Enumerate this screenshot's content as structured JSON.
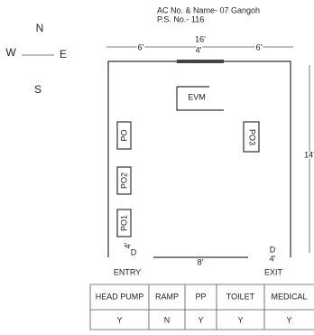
{
  "compass": {
    "north": "N",
    "west": "W",
    "east": "E",
    "south": "S"
  },
  "header": {
    "title": "AC No. & Name- 07 Gangoh",
    "subtitle": "P.S. No.- 116"
  },
  "dimensions": {
    "width": "16'",
    "top_left": "6'",
    "top_door": "4'",
    "top_right": "6'",
    "depth": "14'",
    "bottom": "8'",
    "entry_width": "4'",
    "exit_width": "4'"
  },
  "doors": {
    "entry": "D",
    "exit": "D"
  },
  "rooms": {
    "evm": "EVM",
    "po": "PO",
    "po1": "PO1",
    "po2": "PO2",
    "po3": "PO3"
  },
  "labels": {
    "entry": "ENTRY",
    "exit": "EXIT"
  },
  "table": {
    "header": [
      "HEAD PUMP",
      "RAMP",
      "PP",
      "TOILET",
      "MEDICAL"
    ],
    "rows": [
      [
        "Y",
        "N",
        "Y",
        "Y",
        "Y"
      ]
    ]
  }
}
